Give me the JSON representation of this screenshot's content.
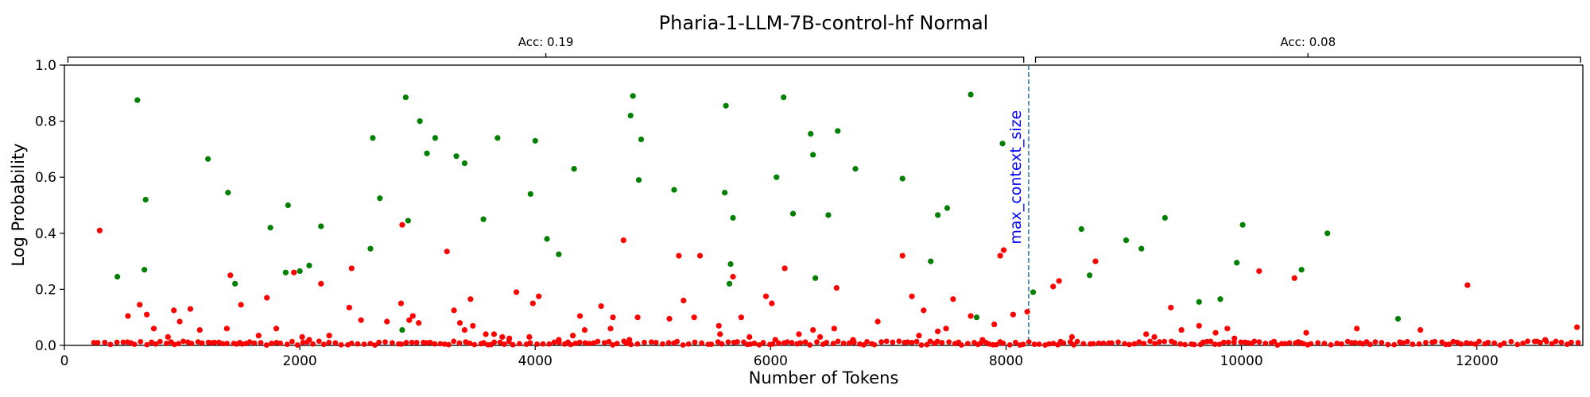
{
  "chart_data": {
    "type": "scatter",
    "title": "Pharia-1-LLM-7B-control-hf Normal",
    "xlabel": "Number of Tokens",
    "ylabel": "Log Probability",
    "xlim": [
      0,
      12900
    ],
    "ylim": [
      0,
      1.0
    ],
    "xticks": [
      0,
      2000,
      4000,
      6000,
      8000,
      10000,
      12000
    ],
    "yticks": [
      0.0,
      0.2,
      0.4,
      0.6,
      0.8,
      1.0
    ],
    "grid": false,
    "colors": {
      "correct": "#008000",
      "incorrect": "#ff0000",
      "divider": "#1f77b4",
      "divider_label": "#0000ff"
    },
    "divider": {
      "x": 8192,
      "label": "max_context_size"
    },
    "brackets": [
      {
        "label": "Acc: 0.19",
        "x_start": 30,
        "x_end": 8150
      },
      {
        "label": "Acc: 0.08",
        "x_start": 8250,
        "x_end": 12880
      }
    ],
    "series": [
      {
        "color": "#008000",
        "x": [
          450,
          620,
          680,
          690,
          1220,
          1390,
          1450,
          1750,
          1880,
          1900,
          2000,
          2080,
          2180,
          2600,
          2620,
          2680,
          2870,
          2900,
          2920,
          3020,
          3080,
          3150,
          3330,
          3400,
          3560,
          3680,
          3960,
          4000,
          4100,
          4200,
          4330,
          4810,
          4830,
          4880,
          4900,
          5180,
          5610,
          5620,
          5650,
          5660,
          5680,
          6050,
          6110,
          6190,
          6340,
          6360,
          6380,
          6490,
          6570,
          6720,
          7120,
          7360,
          7420,
          7500,
          7700,
          7750,
          7970,
          8230,
          8640,
          8710,
          9020,
          9150,
          9350,
          9640,
          9820,
          9960,
          10010,
          10510,
          10730,
          11330
        ],
        "y": [
          0.245,
          0.875,
          0.27,
          0.52,
          0.665,
          0.545,
          0.22,
          0.42,
          0.26,
          0.5,
          0.265,
          0.285,
          0.425,
          0.345,
          0.74,
          0.525,
          0.055,
          0.885,
          0.445,
          0.8,
          0.685,
          0.74,
          0.675,
          0.65,
          0.45,
          0.74,
          0.54,
          0.73,
          0.38,
          0.325,
          0.63,
          0.82,
          0.89,
          0.59,
          0.735,
          0.555,
          0.545,
          0.855,
          0.22,
          0.29,
          0.455,
          0.6,
          0.885,
          0.47,
          0.755,
          0.68,
          0.24,
          0.465,
          0.765,
          0.63,
          0.595,
          0.3,
          0.465,
          0.49,
          0.895,
          0.1,
          0.72,
          0.19,
          0.415,
          0.25,
          0.375,
          0.345,
          0.455,
          0.155,
          0.165,
          0.295,
          0.43,
          0.27,
          0.4,
          0.095
        ]
      },
      {
        "color": "#ff0000",
        "x": [
          300,
          540,
          640,
          700,
          760,
          880,
          930,
          980,
          1070,
          1150,
          1380,
          1410,
          1500,
          1650,
          1720,
          1800,
          1950,
          2020,
          2080,
          2180,
          2250,
          2420,
          2440,
          2520,
          2740,
          2860,
          2870,
          2930,
          2960,
          3010,
          3250,
          3310,
          3360,
          3400,
          3450,
          3470,
          3580,
          3650,
          3720,
          3780,
          3840,
          3950,
          3980,
          4030,
          4200,
          4320,
          4380,
          4420,
          4560,
          4640,
          4660,
          4750,
          4800,
          4870,
          5140,
          5220,
          5260,
          5350,
          5400,
          5560,
          5570,
          5680,
          5750,
          5820,
          5960,
          6010,
          6040,
          6120,
          6240,
          6360,
          6420,
          6540,
          6560,
          6700,
          6910,
          7120,
          7200,
          7260,
          7300,
          7420,
          7490,
          7550,
          7700,
          7800,
          7900,
          7950,
          7980,
          8060,
          8180,
          8400,
          8450,
          8560,
          8760,
          9190,
          9260,
          9400,
          9490,
          9640,
          9780,
          9880,
          9940,
          10150,
          10450,
          10550,
          10980,
          11520,
          11920,
          12580,
          12850
        ],
        "y": [
          0.41,
          0.105,
          0.145,
          0.11,
          0.06,
          0.03,
          0.125,
          0.085,
          0.13,
          0.055,
          0.06,
          0.25,
          0.145,
          0.035,
          0.17,
          0.06,
          0.26,
          0.03,
          0.02,
          0.22,
          0.035,
          0.135,
          0.275,
          0.09,
          0.085,
          0.15,
          0.43,
          0.09,
          0.105,
          0.08,
          0.335,
          0.125,
          0.08,
          0.055,
          0.165,
          0.07,
          0.04,
          0.04,
          0.03,
          0.025,
          0.19,
          0.03,
          0.15,
          0.175,
          0.02,
          0.035,
          0.105,
          0.055,
          0.14,
          0.06,
          0.1,
          0.375,
          0.02,
          0.1,
          0.095,
          0.32,
          0.16,
          0.1,
          0.32,
          0.07,
          0.04,
          0.245,
          0.1,
          0.03,
          0.175,
          0.15,
          0.02,
          0.275,
          0.04,
          0.055,
          0.03,
          0.06,
          0.205,
          0.02,
          0.085,
          0.32,
          0.175,
          0.035,
          0.125,
          0.05,
          0.06,
          0.165,
          0.105,
          0.02,
          0.075,
          0.32,
          0.34,
          0.11,
          0.12,
          0.21,
          0.23,
          0.03,
          0.3,
          0.04,
          0.03,
          0.135,
          0.055,
          0.07,
          0.045,
          0.06,
          0.025,
          0.265,
          0.24,
          0.045,
          0.06,
          0.055,
          0.215,
          0.02,
          0.065
        ]
      }
    ]
  }
}
